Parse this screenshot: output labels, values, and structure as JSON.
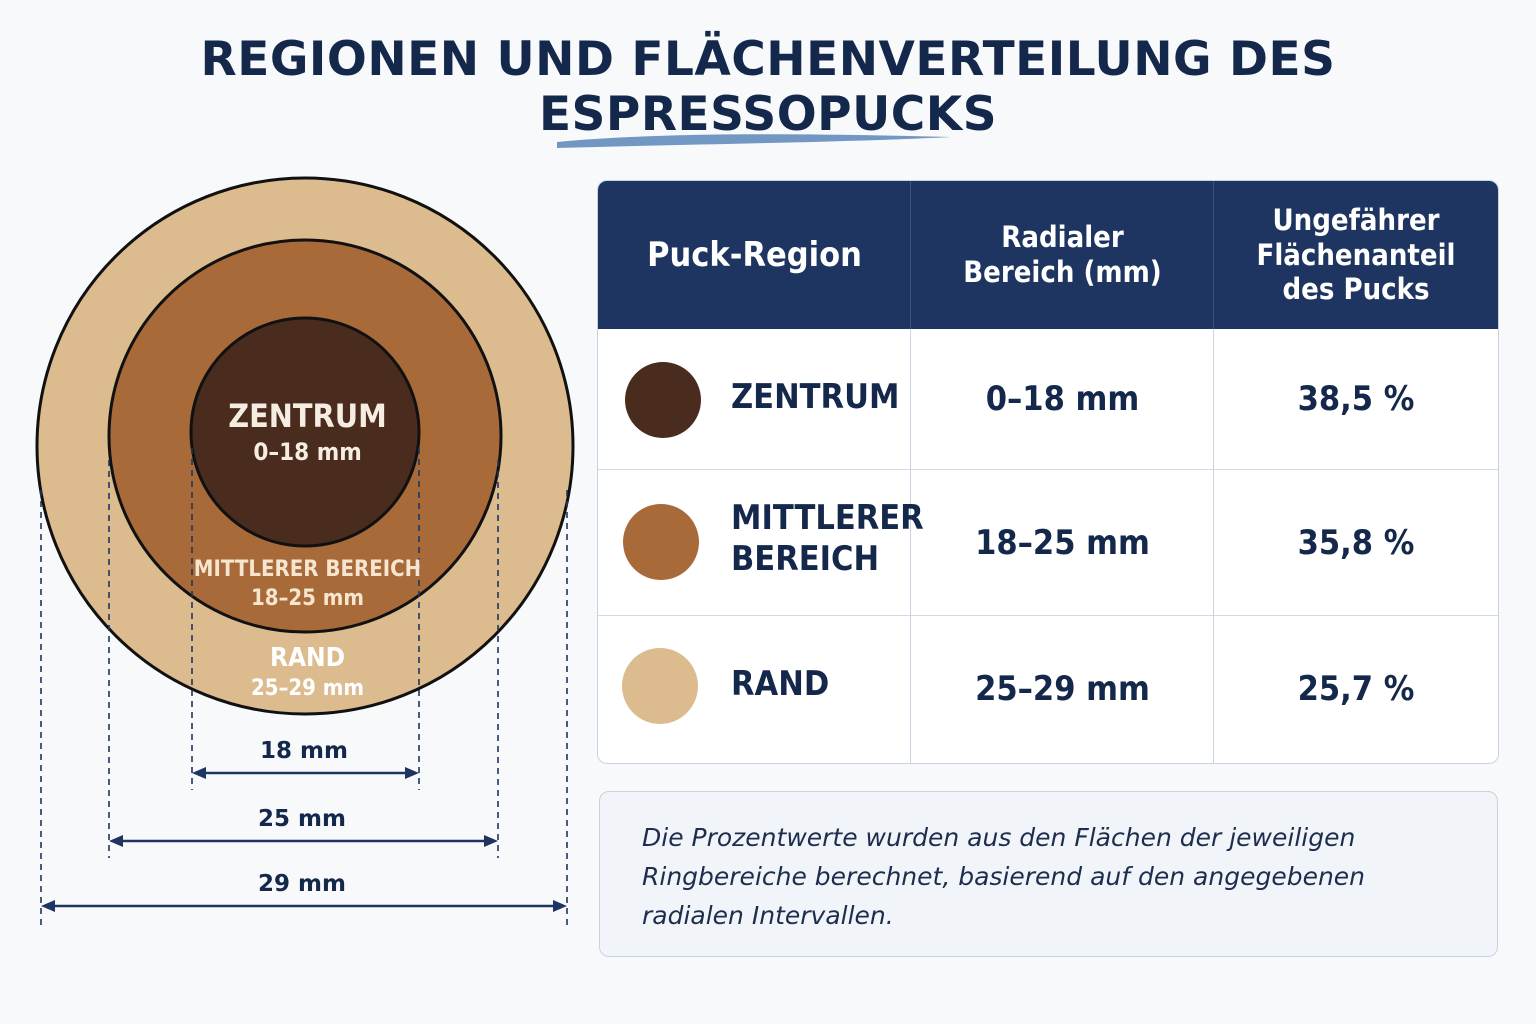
{
  "title": "REGIONEN UND FLÄCHENVERTEILUNG DES ESPRESSOPUCKS",
  "diagram": {
    "rings": [
      {
        "name": "ZENTRUM",
        "range": "0–18 mm",
        "color": "#4a2c1e"
      },
      {
        "name": "MITTLERER BEREICH",
        "range": "18–25 mm",
        "color": "#a96a3a"
      },
      {
        "name": "RAND",
        "range": "25–29 mm",
        "color": "#dcbb8e"
      }
    ],
    "dimensions": [
      "18 mm",
      "25 mm",
      "29 mm"
    ]
  },
  "table": {
    "headers": [
      "Puck-Region",
      "Radialer Bereich (mm)",
      "Ungefährer Flächenanteil des Pucks"
    ],
    "rows": [
      {
        "region": "ZENTRUM",
        "range": "0–18 mm",
        "share": "38,5 %",
        "color": "#4a2c1e"
      },
      {
        "region": "MITTLERER BEREICH",
        "range": "18–25 mm",
        "share": "35,8 %",
        "color": "#a96a3a"
      },
      {
        "region": "RAND",
        "range": "25–29 mm",
        "share": "25,7 %",
        "color": "#dcbb8e"
      }
    ]
  },
  "note": "Die Prozentwerte wurden aus den Flächen der jeweiligen Ringbereiche berechnet, basierend auf den angegebenen radialen Intervallen.",
  "colors": {
    "navy": "#1d3560",
    "text": "#14284b"
  }
}
